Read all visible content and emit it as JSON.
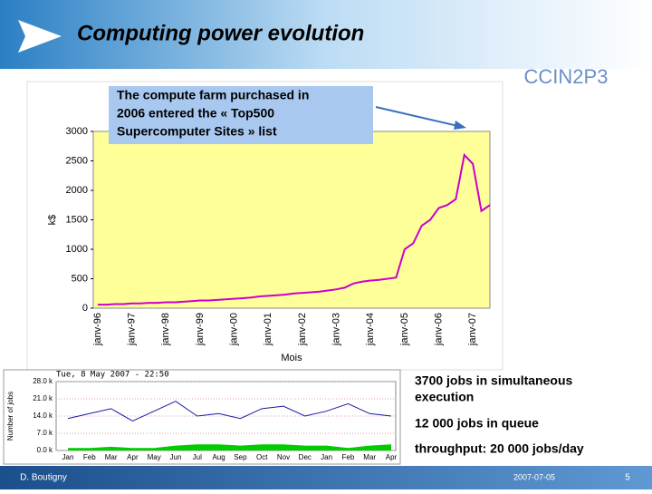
{
  "slide": {
    "title": "Computing power evolution",
    "logo": "CCIN2P3",
    "callout": [
      "The compute farm purchased in",
      "2006 entered the « Top500",
      "Supercomputer Sites » list"
    ],
    "notes": [
      "3700 jobs in simultaneous",
      "execution",
      "12 000 jobs in queue",
      "throughput: 20 000 jobs/day"
    ],
    "footer": {
      "author": "D. Boutigny",
      "date": "2007-07-05",
      "page": "5"
    }
  },
  "chart_data": [
    {
      "type": "line",
      "xlabel": "Mois",
      "ylabel": "k$",
      "categories": [
        "janv-96",
        null,
        null,
        null,
        "janv-97",
        null,
        null,
        null,
        "janv-98",
        null,
        null,
        null,
        "janv-99",
        null,
        null,
        null,
        "janv-00",
        null,
        null,
        null,
        "janv-01",
        null,
        null,
        null,
        "janv-02",
        null,
        null,
        null,
        "janv-03",
        null,
        null,
        null,
        "janv-04",
        null,
        null,
        null,
        "janv-05",
        null,
        null,
        null,
        "janv-06",
        null,
        null,
        null,
        "janv-07",
        null,
        null
      ],
      "series": [
        {
          "color": "#cc00cc",
          "values": [
            60,
            60,
            70,
            70,
            80,
            80,
            90,
            90,
            100,
            100,
            110,
            120,
            130,
            130,
            140,
            150,
            160,
            170,
            180,
            200,
            210,
            220,
            230,
            250,
            260,
            270,
            280,
            300,
            320,
            350,
            420,
            450,
            470,
            480,
            500,
            520,
            1000,
            1100,
            1400,
            1500,
            1700,
            1750,
            1850,
            2600,
            2450,
            1650,
            1750
          ]
        }
      ],
      "ylim": [
        0,
        3000
      ],
      "yticks": [
        0,
        500,
        1000,
        1500,
        2000,
        2500,
        3000
      ],
      "background": "#ffff99"
    },
    {
      "type": "monitor",
      "title": "Tue, 8 May 2007 - 22:50",
      "ylabel": "Number of jobs",
      "categories": [
        "Jan",
        "Feb",
        "Mar",
        "Apr",
        "May",
        "Jun",
        "Jul",
        "Aug",
        "Sep",
        "Oct",
        "Nov",
        "Dec",
        "Jan",
        "Feb",
        "Mar",
        "Apr"
      ],
      "series": [
        {
          "color": "#1a1aa0",
          "values": [
            13,
            15,
            17,
            12,
            16,
            20,
            14,
            15,
            13,
            17,
            18,
            14,
            16,
            19,
            15,
            14
          ]
        },
        {
          "color": "#00cc00",
          "values": [
            1,
            1,
            1.5,
            1,
            1,
            2,
            2.5,
            2.5,
            2,
            2.5,
            2.5,
            2,
            2,
            1,
            2,
            2.5
          ]
        }
      ],
      "ylim": [
        0,
        28
      ],
      "yticks": [
        {
          "value": 0,
          "label": "0.0 k"
        },
        {
          "value": 7,
          "label": "7.0 k"
        },
        {
          "value": 14,
          "label": "14.0 k"
        },
        {
          "value": 21,
          "label": "21.0 k"
        },
        {
          "value": 28,
          "label": "28.0 k"
        }
      ]
    }
  ]
}
